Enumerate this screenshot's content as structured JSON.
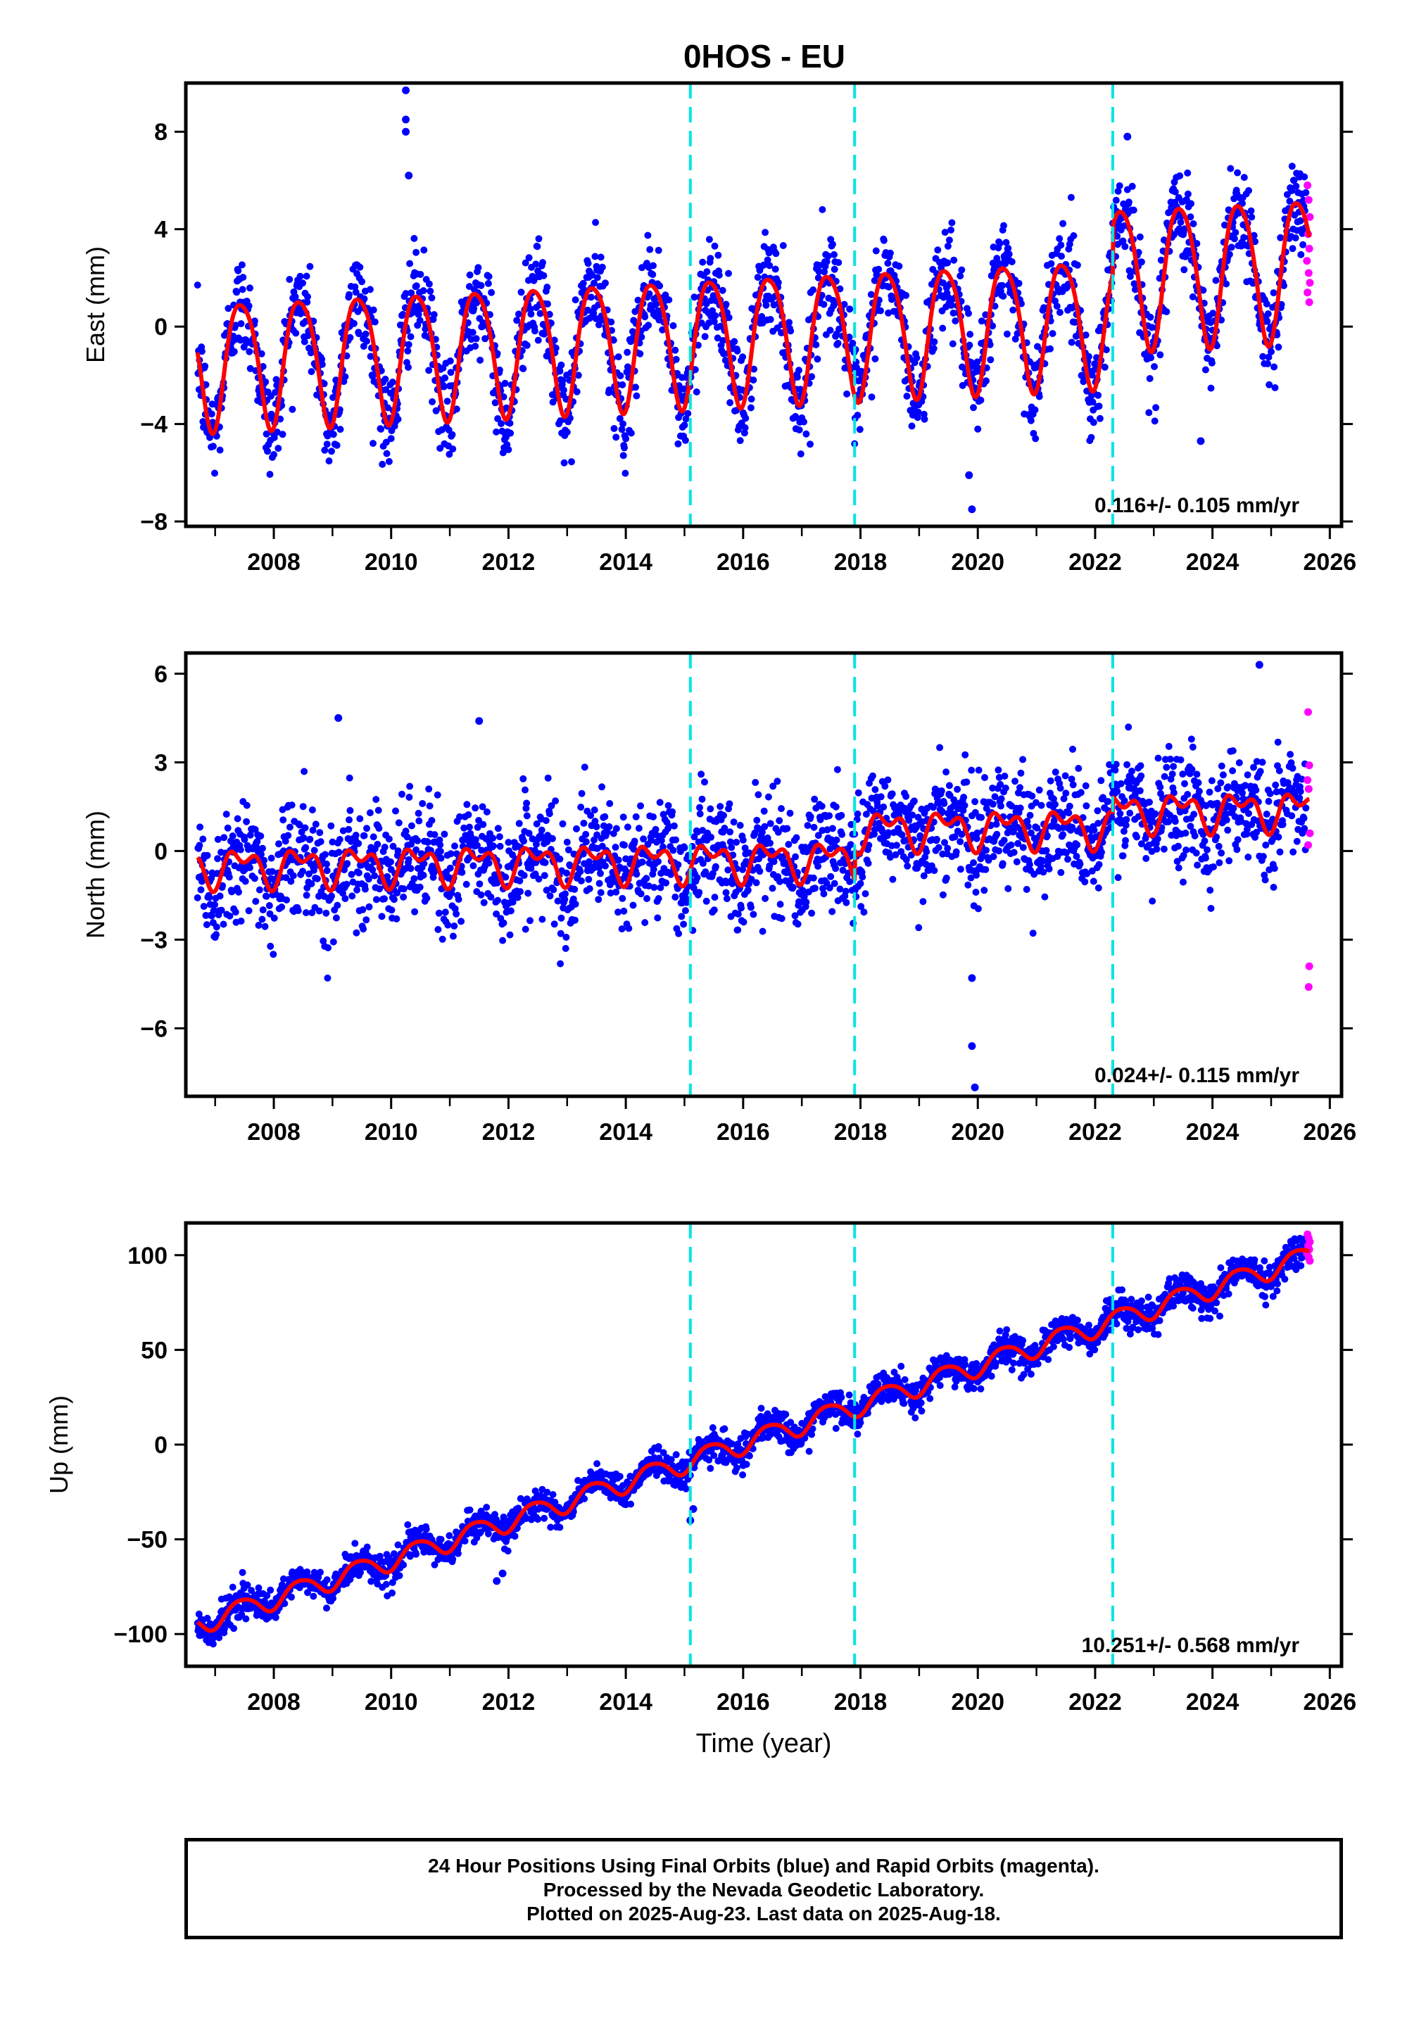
{
  "title": "0HOS - EU",
  "footer": {
    "line1": "24 Hour Positions Using Final Orbits (blue) and Rapid Orbits (magenta).",
    "line2": "Processed by the Nevada Geodetic Laboratory.",
    "line3": "Plotted on 2025-Aug-23. Last data on 2025-Aug-18."
  },
  "colors": {
    "final": "#0000ff",
    "rapid": "#ff00ff",
    "model": "#ff0000",
    "event": "#00e5e5"
  },
  "chart_data": [
    {
      "type": "scatter",
      "ylabel": "East (mm)",
      "xlabel": "",
      "xlim": [
        2006.5,
        2026.2
      ],
      "ylim": [
        -8.2,
        10.0
      ],
      "xticks": [
        2008,
        2010,
        2012,
        2014,
        2016,
        2018,
        2020,
        2022,
        2024,
        2026
      ],
      "yticks": [
        -8,
        -4,
        0,
        4,
        8
      ],
      "ytick_labels": [
        "−8",
        "−4",
        "0",
        "4",
        "8"
      ],
      "event_lines": [
        2015.1,
        2017.9,
        2022.3
      ],
      "rate_label": "0.116+/- 0.105 mm/yr",
      "model": {
        "start": 2006.7,
        "end": 2025.65,
        "offset": -1.45,
        "slope": 0.116,
        "amp_annual": 2.6,
        "amp_semiannual": 0.4,
        "steps": [
          [
            2022.3,
            1.8
          ]
        ],
        "amp_growth": [
          [
            2022.3,
            0.3
          ]
        ]
      },
      "noise_sd": 1.0,
      "final_range": [
        2006.7,
        2025.6
      ],
      "rapid": {
        "x": [
          2025.62,
          2025.64,
          2025.66,
          2025.63,
          2025.65,
          2025.61,
          2025.64,
          2025.66,
          2025.62,
          2025.65
        ],
        "y": [
          5.8,
          5.2,
          4.5,
          3.8,
          3.2,
          2.7,
          2.2,
          1.8,
          1.4,
          1.0
        ]
      },
      "outliers": {
        "x": [
          2010.25,
          2010.25,
          2010.25,
          2010.3,
          2019.9,
          2019.85,
          2022.55,
          2023.8
        ],
        "y": [
          9.7,
          8.5,
          8.0,
          6.2,
          -7.5,
          -6.1,
          7.8,
          -4.7
        ]
      }
    },
    {
      "type": "scatter",
      "ylabel": "North (mm)",
      "xlabel": "",
      "xlim": [
        2006.5,
        2026.2
      ],
      "ylim": [
        -8.3,
        6.7
      ],
      "xticks": [
        2008,
        2010,
        2012,
        2014,
        2016,
        2018,
        2020,
        2022,
        2024,
        2026
      ],
      "yticks": [
        -6,
        -3,
        0,
        3,
        6
      ],
      "ytick_labels": [
        "−6",
        "−3",
        "0",
        "3",
        "6"
      ],
      "event_lines": [
        2015.1,
        2017.9,
        2022.3
      ],
      "rate_label": "0.024+/- 0.115 mm/yr",
      "model": {
        "start": 2006.7,
        "end": 2025.65,
        "offset": -0.55,
        "slope": 0.024,
        "amp_annual": 0.5,
        "amp_semiannual": 0.35,
        "steps": [
          [
            2017.9,
            1.0
          ],
          [
            2022.3,
            0.5
          ]
        ],
        "amp_growth": []
      },
      "noise_sd": 0.95,
      "final_range": [
        2006.7,
        2025.6
      ],
      "rapid": {
        "x": [
          2025.63,
          2025.65,
          2025.62,
          2025.64,
          2025.66,
          2025.63,
          2025.65,
          2025.64
        ],
        "y": [
          4.7,
          2.9,
          2.4,
          2.1,
          0.6,
          0.2,
          -3.9,
          -4.6
        ]
      },
      "outliers": {
        "x": [
          2019.9,
          2019.95,
          2019.9,
          2011.5,
          2009.1,
          2024.8
        ],
        "y": [
          -6.6,
          -8.0,
          -4.3,
          4.4,
          4.5,
          6.3
        ]
      }
    },
    {
      "type": "scatter",
      "ylabel": "Up (mm)",
      "xlabel": "Time (year)",
      "xlim": [
        2006.5,
        2026.2
      ],
      "ylim": [
        -117,
        117
      ],
      "xticks": [
        2008,
        2010,
        2012,
        2014,
        2016,
        2018,
        2020,
        2022,
        2024,
        2026
      ],
      "yticks": [
        -100,
        -50,
        0,
        50,
        100
      ],
      "ytick_labels": [
        "−100",
        "−50",
        "0",
        "50",
        "100"
      ],
      "event_lines": [
        2015.1,
        2017.9,
        2022.3
      ],
      "rate_label": "10.251+/- 0.568 mm/yr",
      "model": {
        "start": 2006.7,
        "end": 2025.65,
        "offset": -94.5,
        "slope": 10.251,
        "amp_annual": 5.5,
        "amp_semiannual": 0.8,
        "steps": [],
        "amp_growth": []
      },
      "noise_sd": 4.0,
      "final_range": [
        2006.7,
        2025.6
      ],
      "rapid": {
        "x": [
          2025.62,
          2025.64,
          2025.66,
          2025.63,
          2025.65,
          2025.61,
          2025.64,
          2025.66
        ],
        "y": [
          111,
          109,
          107,
          105,
          103,
          101,
          99,
          97
        ]
      },
      "outliers": {
        "x": [
          2015.1,
          2015.15,
          2011.8,
          2011.9
        ],
        "y": [
          -40,
          -34,
          -72,
          -68
        ]
      }
    }
  ]
}
